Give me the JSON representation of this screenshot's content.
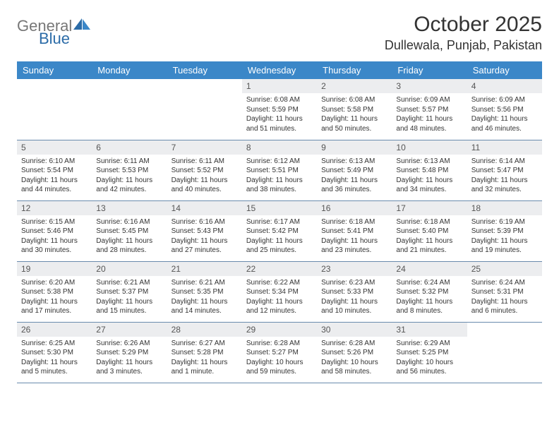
{
  "brand": {
    "part1": "General",
    "part2": "Blue"
  },
  "title": "October 2025",
  "location": "Dullewala, Punjab, Pakistan",
  "colors": {
    "header_bg": "#3b87c8",
    "header_text": "#ffffff",
    "daynum_bg": "#ecedef",
    "border": "#6a8bad",
    "brand_blue": "#2c6ca8"
  },
  "weekdays": [
    "Sunday",
    "Monday",
    "Tuesday",
    "Wednesday",
    "Thursday",
    "Friday",
    "Saturday"
  ],
  "weeks": [
    [
      {
        "n": "",
        "sr": "",
        "ss": "",
        "dl": ""
      },
      {
        "n": "",
        "sr": "",
        "ss": "",
        "dl": ""
      },
      {
        "n": "",
        "sr": "",
        "ss": "",
        "dl": ""
      },
      {
        "n": "1",
        "sr": "Sunrise: 6:08 AM",
        "ss": "Sunset: 5:59 PM",
        "dl": "Daylight: 11 hours and 51 minutes."
      },
      {
        "n": "2",
        "sr": "Sunrise: 6:08 AM",
        "ss": "Sunset: 5:58 PM",
        "dl": "Daylight: 11 hours and 50 minutes."
      },
      {
        "n": "3",
        "sr": "Sunrise: 6:09 AM",
        "ss": "Sunset: 5:57 PM",
        "dl": "Daylight: 11 hours and 48 minutes."
      },
      {
        "n": "4",
        "sr": "Sunrise: 6:09 AM",
        "ss": "Sunset: 5:56 PM",
        "dl": "Daylight: 11 hours and 46 minutes."
      }
    ],
    [
      {
        "n": "5",
        "sr": "Sunrise: 6:10 AM",
        "ss": "Sunset: 5:54 PM",
        "dl": "Daylight: 11 hours and 44 minutes."
      },
      {
        "n": "6",
        "sr": "Sunrise: 6:11 AM",
        "ss": "Sunset: 5:53 PM",
        "dl": "Daylight: 11 hours and 42 minutes."
      },
      {
        "n": "7",
        "sr": "Sunrise: 6:11 AM",
        "ss": "Sunset: 5:52 PM",
        "dl": "Daylight: 11 hours and 40 minutes."
      },
      {
        "n": "8",
        "sr": "Sunrise: 6:12 AM",
        "ss": "Sunset: 5:51 PM",
        "dl": "Daylight: 11 hours and 38 minutes."
      },
      {
        "n": "9",
        "sr": "Sunrise: 6:13 AM",
        "ss": "Sunset: 5:49 PM",
        "dl": "Daylight: 11 hours and 36 minutes."
      },
      {
        "n": "10",
        "sr": "Sunrise: 6:13 AM",
        "ss": "Sunset: 5:48 PM",
        "dl": "Daylight: 11 hours and 34 minutes."
      },
      {
        "n": "11",
        "sr": "Sunrise: 6:14 AM",
        "ss": "Sunset: 5:47 PM",
        "dl": "Daylight: 11 hours and 32 minutes."
      }
    ],
    [
      {
        "n": "12",
        "sr": "Sunrise: 6:15 AM",
        "ss": "Sunset: 5:46 PM",
        "dl": "Daylight: 11 hours and 30 minutes."
      },
      {
        "n": "13",
        "sr": "Sunrise: 6:16 AM",
        "ss": "Sunset: 5:45 PM",
        "dl": "Daylight: 11 hours and 28 minutes."
      },
      {
        "n": "14",
        "sr": "Sunrise: 6:16 AM",
        "ss": "Sunset: 5:43 PM",
        "dl": "Daylight: 11 hours and 27 minutes."
      },
      {
        "n": "15",
        "sr": "Sunrise: 6:17 AM",
        "ss": "Sunset: 5:42 PM",
        "dl": "Daylight: 11 hours and 25 minutes."
      },
      {
        "n": "16",
        "sr": "Sunrise: 6:18 AM",
        "ss": "Sunset: 5:41 PM",
        "dl": "Daylight: 11 hours and 23 minutes."
      },
      {
        "n": "17",
        "sr": "Sunrise: 6:18 AM",
        "ss": "Sunset: 5:40 PM",
        "dl": "Daylight: 11 hours and 21 minutes."
      },
      {
        "n": "18",
        "sr": "Sunrise: 6:19 AM",
        "ss": "Sunset: 5:39 PM",
        "dl": "Daylight: 11 hours and 19 minutes."
      }
    ],
    [
      {
        "n": "19",
        "sr": "Sunrise: 6:20 AM",
        "ss": "Sunset: 5:38 PM",
        "dl": "Daylight: 11 hours and 17 minutes."
      },
      {
        "n": "20",
        "sr": "Sunrise: 6:21 AM",
        "ss": "Sunset: 5:37 PM",
        "dl": "Daylight: 11 hours and 15 minutes."
      },
      {
        "n": "21",
        "sr": "Sunrise: 6:21 AM",
        "ss": "Sunset: 5:35 PM",
        "dl": "Daylight: 11 hours and 14 minutes."
      },
      {
        "n": "22",
        "sr": "Sunrise: 6:22 AM",
        "ss": "Sunset: 5:34 PM",
        "dl": "Daylight: 11 hours and 12 minutes."
      },
      {
        "n": "23",
        "sr": "Sunrise: 6:23 AM",
        "ss": "Sunset: 5:33 PM",
        "dl": "Daylight: 11 hours and 10 minutes."
      },
      {
        "n": "24",
        "sr": "Sunrise: 6:24 AM",
        "ss": "Sunset: 5:32 PM",
        "dl": "Daylight: 11 hours and 8 minutes."
      },
      {
        "n": "25",
        "sr": "Sunrise: 6:24 AM",
        "ss": "Sunset: 5:31 PM",
        "dl": "Daylight: 11 hours and 6 minutes."
      }
    ],
    [
      {
        "n": "26",
        "sr": "Sunrise: 6:25 AM",
        "ss": "Sunset: 5:30 PM",
        "dl": "Daylight: 11 hours and 5 minutes."
      },
      {
        "n": "27",
        "sr": "Sunrise: 6:26 AM",
        "ss": "Sunset: 5:29 PM",
        "dl": "Daylight: 11 hours and 3 minutes."
      },
      {
        "n": "28",
        "sr": "Sunrise: 6:27 AM",
        "ss": "Sunset: 5:28 PM",
        "dl": "Daylight: 11 hours and 1 minute."
      },
      {
        "n": "29",
        "sr": "Sunrise: 6:28 AM",
        "ss": "Sunset: 5:27 PM",
        "dl": "Daylight: 10 hours and 59 minutes."
      },
      {
        "n": "30",
        "sr": "Sunrise: 6:28 AM",
        "ss": "Sunset: 5:26 PM",
        "dl": "Daylight: 10 hours and 58 minutes."
      },
      {
        "n": "31",
        "sr": "Sunrise: 6:29 AM",
        "ss": "Sunset: 5:25 PM",
        "dl": "Daylight: 10 hours and 56 minutes."
      },
      {
        "n": "",
        "sr": "",
        "ss": "",
        "dl": ""
      }
    ]
  ]
}
